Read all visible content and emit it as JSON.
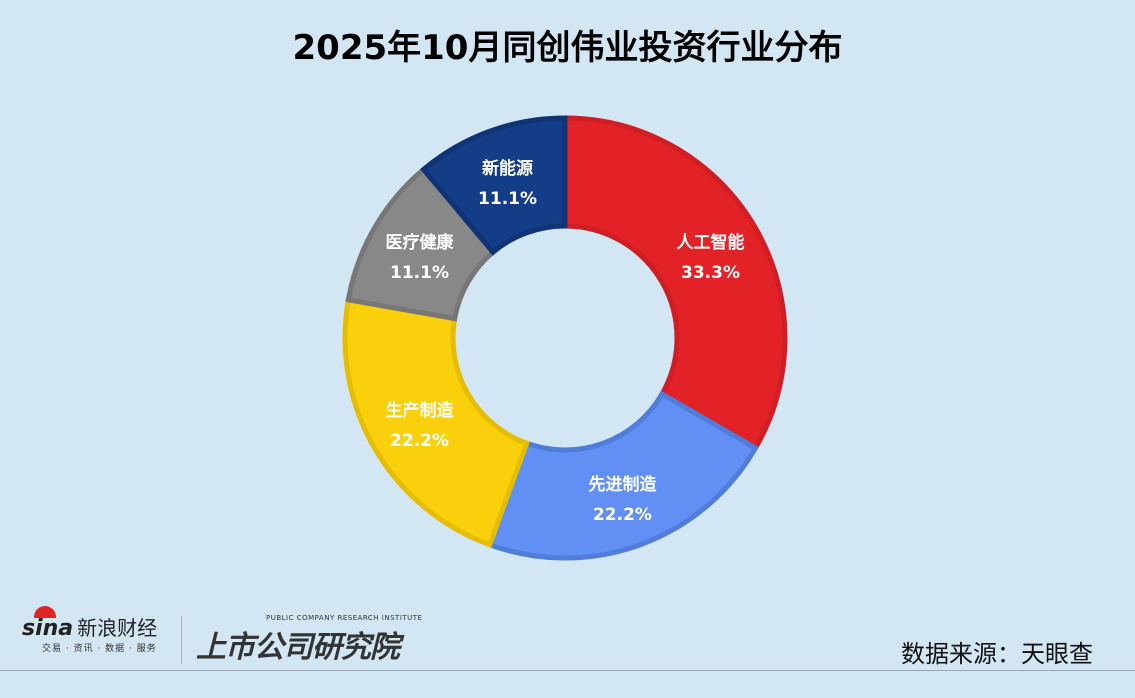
{
  "chart_data": {
    "type": "pie",
    "variant": "donut",
    "title": "2025年10月同创伟业投资行业分布",
    "slices": [
      {
        "label": "人工智能",
        "value": 33.3,
        "display": "33.3%",
        "color": "#e32227",
        "stroke": "#cf1f24"
      },
      {
        "label": "先进制造",
        "value": 22.2,
        "display": "22.2%",
        "color": "#618ff3",
        "stroke": "#4f7dd9"
      },
      {
        "label": "生产制造",
        "value": 22.2,
        "display": "22.2%",
        "color": "#f9d00b",
        "stroke": "#e6bd05"
      },
      {
        "label": "医疗健康",
        "value": 11.1,
        "display": "11.1%",
        "color": "#888888",
        "stroke": "#777777"
      },
      {
        "label": "新能源",
        "value": 11.1,
        "display": "11.1%",
        "color": "#133d87",
        "stroke": "#0f3374"
      }
    ],
    "start": "top, clockwise"
  },
  "footer": {
    "sina_brand": "sina",
    "sina_name": "新浪财经",
    "sina_tagline": "交易 · 资讯 · 数据 · 服务",
    "institute_en": "PUBLIC COMPANY RESEARCH INSTITUTE",
    "institute_cn": "上市公司研究院",
    "source": "数据来源：天眼查"
  }
}
